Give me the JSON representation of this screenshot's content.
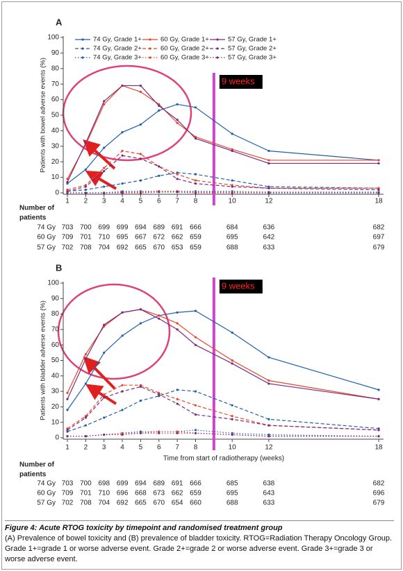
{
  "chart_data": [
    {
      "type": "line",
      "panel": "A",
      "ylabel": "Patients with bowel adverse events (%)",
      "x": [
        1,
        2,
        3,
        4,
        5,
        6,
        7,
        8,
        10,
        12,
        18
      ],
      "xlim": [
        1,
        18
      ],
      "xticks": [
        1,
        2,
        3,
        4,
        5,
        6,
        7,
        8,
        10,
        12,
        18
      ],
      "ylim": [
        0,
        100
      ],
      "yticks": [
        0,
        10,
        20,
        30,
        40,
        50,
        60,
        70,
        80,
        90,
        100
      ],
      "legend": true,
      "series": [
        {
          "name": "74 Gy, Grade 1+",
          "color": "#1f5fa8",
          "dash": "solid",
          "values": [
            6,
            15,
            29,
            39,
            44,
            53,
            57,
            55,
            38,
            27,
            21
          ]
        },
        {
          "name": "60 Gy, Grade 1+",
          "color": "#e8452c",
          "dash": "solid",
          "values": [
            9,
            31,
            57,
            69,
            65,
            57,
            45,
            36,
            28,
            21,
            21
          ]
        },
        {
          "name": "57 Gy, Grade 1+",
          "color": "#7b2a7e",
          "dash": "solid",
          "values": [
            7,
            32,
            59,
            69,
            69,
            56,
            47,
            35,
            27,
            19,
            19
          ]
        },
        {
          "name": "74 Gy, Grade 2+",
          "color": "#1f5fa8",
          "dash": "dashed",
          "values": [
            1,
            2,
            4,
            6,
            8,
            11,
            13,
            12,
            8,
            4,
            3
          ]
        },
        {
          "name": "60 Gy, Grade 2+",
          "color": "#e8452c",
          "dash": "dashed",
          "values": [
            2,
            5,
            16,
            27,
            25,
            17,
            12,
            8,
            5,
            3,
            3
          ]
        },
        {
          "name": "57 Gy, Grade 2+",
          "color": "#7b2a7e",
          "dash": "dashed",
          "values": [
            1,
            4,
            14,
            24,
            22,
            17,
            9,
            6,
            4,
            3,
            2
          ]
        },
        {
          "name": "74 Gy, Grade 3+",
          "color": "#1f5fa8",
          "dash": "dotted",
          "values": [
            0,
            0,
            0,
            1,
            1,
            1,
            1,
            1,
            1,
            0.5,
            0.5
          ]
        },
        {
          "name": "60 Gy, Grade 3+",
          "color": "#e8452c",
          "dash": "dotted",
          "values": [
            0,
            0,
            0,
            0.5,
            0.5,
            1,
            1,
            0.5,
            0.5,
            0,
            0
          ]
        },
        {
          "name": "57 Gy, Grade 3+",
          "color": "#7b2a7e",
          "dash": "dotted",
          "values": [
            0,
            0,
            0,
            0,
            0,
            0.5,
            0.5,
            0,
            0,
            0,
            0
          ]
        }
      ],
      "vline": {
        "x": 9,
        "label": "9 weeks",
        "color": "#cc44cc"
      },
      "risk_table": {
        "title": [
          "Number of",
          "patients"
        ],
        "rows": [
          {
            "label": "74 Gy",
            "values": [
              703,
              700,
              699,
              699,
              694,
              689,
              691,
              666,
              684,
              636,
              682
            ]
          },
          {
            "label": "60 Gy",
            "values": [
              709,
              701,
              710,
              695,
              667,
              672,
              662,
              659,
              695,
              642,
              697
            ]
          },
          {
            "label": "57 Gy",
            "values": [
              702,
              708,
              704,
              692,
              665,
              670,
              653,
              659,
              688,
              633,
              679
            ]
          }
        ]
      }
    },
    {
      "type": "line",
      "panel": "B",
      "ylabel": "Patients with bladder adverse events (%)",
      "xlabel": "Time from start of radiotherapy (weeks)",
      "x": [
        1,
        2,
        3,
        4,
        5,
        6,
        7,
        8,
        10,
        12,
        18
      ],
      "xlim": [
        1,
        18
      ],
      "xticks": [
        1,
        2,
        3,
        4,
        5,
        6,
        7,
        8,
        10,
        12,
        18
      ],
      "ylim": [
        0,
        100
      ],
      "yticks": [
        0,
        10,
        20,
        30,
        40,
        50,
        60,
        70,
        80,
        90,
        100
      ],
      "legend": false,
      "series": [
        {
          "name": "74 Gy, Grade 1+",
          "color": "#1f5fa8",
          "dash": "solid",
          "values": [
            18,
            35,
            55,
            66,
            74,
            79,
            81,
            82,
            68,
            52,
            31
          ]
        },
        {
          "name": "60 Gy, Grade 1+",
          "color": "#e8452c",
          "dash": "solid",
          "values": [
            29,
            54,
            72,
            81,
            83,
            79,
            74,
            65,
            50,
            37,
            25
          ]
        },
        {
          "name": "57 Gy, Grade 1+",
          "color": "#7b2a7e",
          "dash": "solid",
          "values": [
            25,
            51,
            73,
            81,
            83,
            77,
            70,
            60,
            48,
            35,
            25
          ]
        },
        {
          "name": "74 Gy, Grade 2+",
          "color": "#1f5fa8",
          "dash": "dashed",
          "values": [
            4,
            8,
            13,
            18,
            24,
            27,
            31,
            30,
            21,
            12,
            6
          ]
        },
        {
          "name": "60 Gy, Grade 2+",
          "color": "#e8452c",
          "dash": "dashed",
          "values": [
            6,
            14,
            28,
            34,
            34,
            29,
            25,
            21,
            14,
            8,
            5
          ]
        },
        {
          "name": "57 Gy, Grade 2+",
          "color": "#7b2a7e",
          "dash": "dashed",
          "values": [
            5,
            13,
            26,
            30,
            33,
            28,
            22,
            15,
            12,
            8,
            5
          ]
        },
        {
          "name": "74 Gy, Grade 3+",
          "color": "#1f5fa8",
          "dash": "dotted",
          "values": [
            1,
            1,
            2,
            3,
            4,
            4,
            4,
            5,
            3,
            2,
            1
          ]
        },
        {
          "name": "60 Gy, Grade 3+",
          "color": "#e8452c",
          "dash": "dotted",
          "values": [
            1,
            1,
            2,
            3,
            3,
            4,
            4,
            3,
            2,
            1,
            1
          ]
        },
        {
          "name": "57 Gy, Grade 3+",
          "color": "#7b2a7e",
          "dash": "dotted",
          "values": [
            1,
            1,
            2,
            2,
            3,
            3,
            3,
            3,
            2,
            1,
            1
          ]
        }
      ],
      "vline": {
        "x": 9,
        "label": "9 weeks",
        "color": "#cc44cc"
      },
      "risk_table": {
        "title": [
          "Number of",
          "patients"
        ],
        "rows": [
          {
            "label": "74 Gy",
            "values": [
              703,
              700,
              698,
              699,
              694,
              689,
              691,
              666,
              685,
              638,
              682
            ]
          },
          {
            "label": "60 Gy",
            "values": [
              709,
              701,
              710,
              696,
              668,
              673,
              662,
              659,
              695,
              643,
              696
            ]
          },
          {
            "label": "57 Gy",
            "values": [
              702,
              708,
              704,
              692,
              665,
              670,
              654,
              660,
              688,
              633,
              679
            ]
          }
        ]
      }
    }
  ],
  "caption": {
    "title": "Figure 4: Acute RTOG toxicity by timepoint and randomised treatment group",
    "text": "(A) Prevalence of bowel toxicity and (B) prevalence of bladder toxicity. RTOG=Radiation Therapy Oncology Group. Grade 1+=grade 1 or worse adverse event. Grade 2+=grade 2 or worse adverse event. Grade 3+=grade 3 or worse adverse event."
  }
}
